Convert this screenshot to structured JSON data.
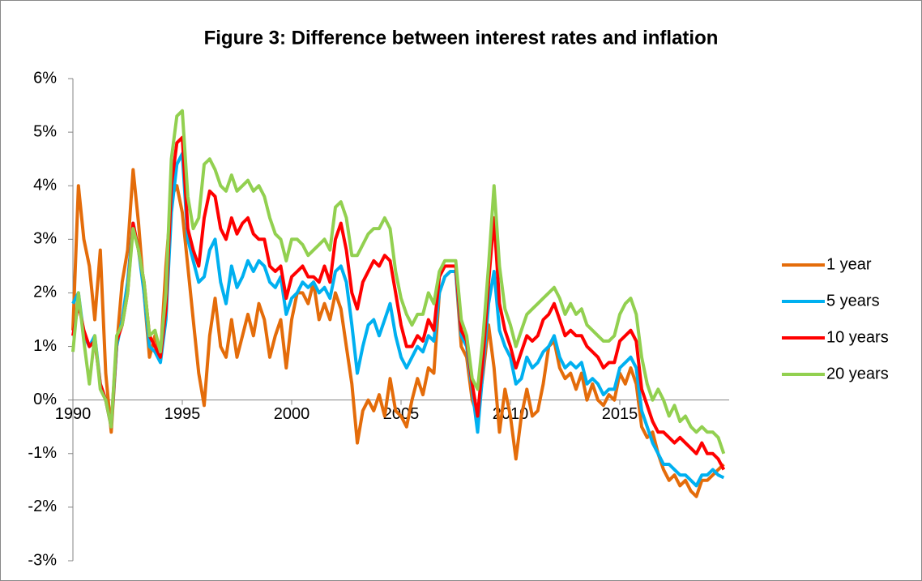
{
  "chart_data": {
    "type": "line",
    "title": "Figure 3: Difference between interest rates and inflation",
    "x": [
      1990,
      1990.25,
      1990.5,
      1990.75,
      1991,
      1991.25,
      1991.5,
      1991.75,
      1992,
      1992.25,
      1992.5,
      1992.75,
      1993,
      1993.25,
      1993.5,
      1993.75,
      1994,
      1994.25,
      1994.5,
      1994.75,
      1995,
      1995.25,
      1995.5,
      1995.75,
      1996,
      1996.25,
      1996.5,
      1996.75,
      1997,
      1997.25,
      1997.5,
      1997.75,
      1998,
      1998.25,
      1998.5,
      1998.75,
      1999,
      1999.25,
      1999.5,
      1999.75,
      2000,
      2000.25,
      2000.5,
      2000.75,
      2001,
      2001.25,
      2001.5,
      2001.75,
      2002,
      2002.25,
      2002.5,
      2002.75,
      2003,
      2003.25,
      2003.5,
      2003.75,
      2004,
      2004.25,
      2004.5,
      2004.75,
      2005,
      2005.25,
      2005.5,
      2005.75,
      2006,
      2006.25,
      2006.5,
      2006.75,
      2007,
      2007.25,
      2007.5,
      2007.75,
      2008,
      2008.25,
      2008.5,
      2008.75,
      2009,
      2009.25,
      2009.5,
      2009.75,
      2010,
      2010.25,
      2010.5,
      2010.75,
      2011,
      2011.25,
      2011.5,
      2011.75,
      2012,
      2012.25,
      2012.5,
      2012.75,
      2013,
      2013.25,
      2013.5,
      2013.75,
      2014,
      2014.25,
      2014.5,
      2014.75,
      2015,
      2015.25,
      2015.5,
      2015.75,
      2016,
      2016.25,
      2016.5,
      2016.75,
      2017,
      2017.25,
      2017.5,
      2017.75,
      2018,
      2018.25,
      2018.5,
      2018.75,
      2019,
      2019.25,
      2019.5,
      2019.75
    ],
    "series": [
      {
        "name": "1 year",
        "color": "#e46c0a",
        "values": [
          1.3,
          4.0,
          3.0,
          2.5,
          1.5,
          2.8,
          0.5,
          -0.6,
          1.0,
          2.2,
          2.8,
          4.3,
          3.3,
          2.0,
          0.8,
          1.2,
          0.8,
          2.5,
          3.8,
          4.0,
          3.5,
          2.5,
          1.5,
          0.5,
          -0.1,
          1.2,
          1.9,
          1.0,
          0.8,
          1.5,
          0.8,
          1.2,
          1.6,
          1.2,
          1.8,
          1.5,
          0.8,
          1.2,
          1.5,
          0.6,
          1.5,
          2.0,
          2.0,
          1.8,
          2.2,
          1.5,
          1.8,
          1.5,
          2.0,
          1.7,
          1.0,
          0.3,
          -0.8,
          -0.2,
          0.0,
          -0.2,
          0.1,
          -0.3,
          0.4,
          -0.2,
          -0.3,
          -0.5,
          0.0,
          0.4,
          0.1,
          0.6,
          0.5,
          2.0,
          2.3,
          2.4,
          2.4,
          1.0,
          0.8,
          0.0,
          -0.3,
          0.5,
          1.4,
          0.6,
          -0.6,
          0.2,
          -0.3,
          -1.1,
          -0.3,
          0.2,
          -0.3,
          -0.2,
          0.3,
          1.0,
          1.1,
          0.6,
          0.4,
          0.5,
          0.2,
          0.5,
          0.0,
          0.3,
          0.0,
          -0.1,
          0.1,
          0.0,
          0.5,
          0.3,
          0.6,
          0.3,
          -0.5,
          -0.7,
          -0.6,
          -1.0,
          -1.3,
          -1.5,
          -1.4,
          -1.6,
          -1.5,
          -1.7,
          -1.8,
          -1.5,
          -1.5,
          -1.4,
          -1.3,
          -1.2
        ]
      },
      {
        "name": "5 years",
        "color": "#00b0f0",
        "values": [
          1.8,
          2.0,
          1.2,
          1.0,
          1.2,
          0.3,
          0.0,
          -0.5,
          1.0,
          1.5,
          2.2,
          3.3,
          2.8,
          2.0,
          1.0,
          0.9,
          0.7,
          1.5,
          3.5,
          4.4,
          4.6,
          3.0,
          2.6,
          2.2,
          2.3,
          2.8,
          3.0,
          2.2,
          1.8,
          2.5,
          2.1,
          2.3,
          2.6,
          2.4,
          2.6,
          2.5,
          2.2,
          2.1,
          2.3,
          1.6,
          1.9,
          2.0,
          2.2,
          2.1,
          2.2,
          2.0,
          2.1,
          1.9,
          2.4,
          2.5,
          2.2,
          1.4,
          0.5,
          1.0,
          1.4,
          1.5,
          1.2,
          1.5,
          1.8,
          1.2,
          0.8,
          0.6,
          0.8,
          1.0,
          0.9,
          1.2,
          1.1,
          2.0,
          2.3,
          2.4,
          2.4,
          1.2,
          1.0,
          0.2,
          -0.6,
          0.6,
          1.8,
          2.4,
          1.3,
          1.0,
          0.8,
          0.3,
          0.4,
          0.8,
          0.6,
          0.7,
          0.9,
          1.0,
          1.2,
          0.8,
          0.6,
          0.7,
          0.6,
          0.7,
          0.3,
          0.4,
          0.3,
          0.1,
          0.2,
          0.2,
          0.6,
          0.7,
          0.8,
          0.6,
          -0.2,
          -0.5,
          -0.8,
          -1.0,
          -1.2,
          -1.2,
          -1.3,
          -1.4,
          -1.4,
          -1.5,
          -1.6,
          -1.4,
          -1.4,
          -1.3,
          -1.4,
          -1.45
        ]
      },
      {
        "name": "10 years",
        "color": "#ff0000",
        "values": [
          1.2,
          1.8,
          1.3,
          1.0,
          1.1,
          0.3,
          0.0,
          -0.5,
          1.1,
          1.4,
          2.0,
          3.3,
          2.8,
          2.2,
          1.2,
          1.0,
          0.8,
          1.7,
          4.0,
          4.8,
          4.9,
          3.2,
          2.8,
          2.5,
          3.4,
          3.9,
          3.8,
          3.2,
          3.0,
          3.4,
          3.1,
          3.3,
          3.4,
          3.1,
          3.0,
          3.0,
          2.5,
          2.4,
          2.5,
          1.9,
          2.3,
          2.4,
          2.5,
          2.3,
          2.3,
          2.2,
          2.5,
          2.2,
          3.0,
          3.3,
          2.8,
          2.0,
          1.7,
          2.2,
          2.4,
          2.6,
          2.5,
          2.7,
          2.6,
          2.0,
          1.4,
          1.0,
          1.0,
          1.2,
          1.1,
          1.5,
          1.3,
          2.3,
          2.5,
          2.5,
          2.5,
          1.3,
          1.1,
          0.3,
          -0.3,
          0.8,
          2.2,
          3.4,
          1.8,
          1.3,
          1.0,
          0.6,
          0.9,
          1.2,
          1.1,
          1.2,
          1.5,
          1.6,
          1.8,
          1.5,
          1.2,
          1.3,
          1.2,
          1.2,
          1.0,
          0.9,
          0.8,
          0.6,
          0.7,
          0.7,
          1.1,
          1.2,
          1.3,
          1.1,
          0.2,
          -0.1,
          -0.4,
          -0.6,
          -0.6,
          -0.7,
          -0.8,
          -0.7,
          -0.8,
          -0.9,
          -1.0,
          -0.8,
          -1.0,
          -1.0,
          -1.1,
          -1.3
        ]
      },
      {
        "name": "20 years",
        "color": "#92d050",
        "values": [
          0.9,
          2.0,
          1.1,
          0.3,
          1.2,
          0.2,
          0.0,
          -0.5,
          1.2,
          1.4,
          2.0,
          3.2,
          2.8,
          2.2,
          1.2,
          1.3,
          0.9,
          2.0,
          4.5,
          5.3,
          5.4,
          3.8,
          3.2,
          3.4,
          4.4,
          4.5,
          4.3,
          4.0,
          3.9,
          4.2,
          3.9,
          4.0,
          4.1,
          3.9,
          4.0,
          3.8,
          3.4,
          3.1,
          3.0,
          2.6,
          3.0,
          3.0,
          2.9,
          2.7,
          2.8,
          2.9,
          3.0,
          2.8,
          3.6,
          3.7,
          3.4,
          2.7,
          2.7,
          2.9,
          3.1,
          3.2,
          3.2,
          3.4,
          3.2,
          2.4,
          1.9,
          1.6,
          1.4,
          1.6,
          1.6,
          2.0,
          1.8,
          2.4,
          2.6,
          2.6,
          2.6,
          1.5,
          1.2,
          0.4,
          0.2,
          1.2,
          2.5,
          4.0,
          2.5,
          1.7,
          1.4,
          1.0,
          1.3,
          1.6,
          1.7,
          1.8,
          1.9,
          2.0,
          2.1,
          1.9,
          1.6,
          1.8,
          1.6,
          1.7,
          1.4,
          1.3,
          1.2,
          1.1,
          1.1,
          1.2,
          1.6,
          1.8,
          1.9,
          1.6,
          0.8,
          0.3,
          0.0,
          0.2,
          0.0,
          -0.3,
          -0.1,
          -0.4,
          -0.3,
          -0.5,
          -0.6,
          -0.5,
          -0.6,
          -0.6,
          -0.7,
          -1.0
        ]
      }
    ],
    "xlim": [
      1990,
      2020
    ],
    "xticks": [
      1990,
      1995,
      2000,
      2005,
      2010,
      2015
    ],
    "ylim": [
      -3,
      6
    ],
    "yticks": [
      {
        "value": -3,
        "label": "-3%"
      },
      {
        "value": -2,
        "label": "-2%"
      },
      {
        "value": -1,
        "label": "-1%"
      },
      {
        "value": 0,
        "label": "0%"
      },
      {
        "value": 1,
        "label": "1%"
      },
      {
        "value": 2,
        "label": "2%"
      },
      {
        "value": 3,
        "label": "3%"
      },
      {
        "value": 4,
        "label": "4%"
      },
      {
        "value": 5,
        "label": "5%"
      },
      {
        "value": 6,
        "label": "6%"
      }
    ],
    "legend": "right"
  }
}
